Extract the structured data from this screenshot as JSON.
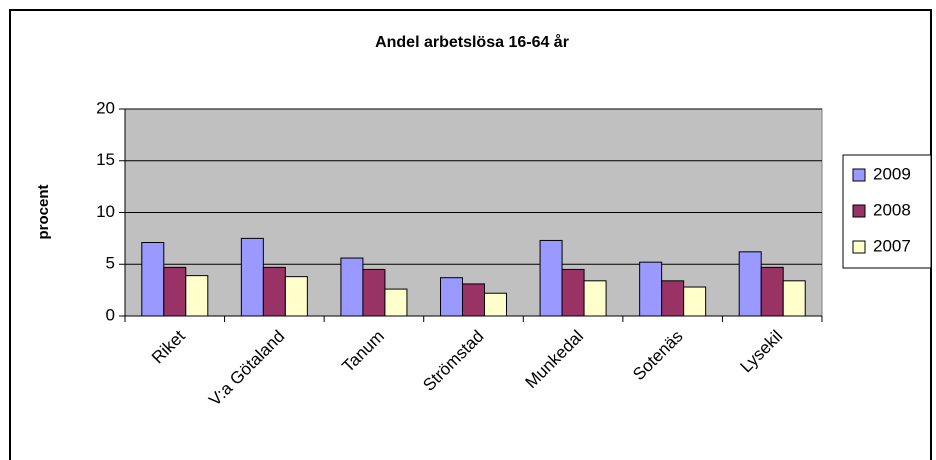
{
  "chart_data": {
    "type": "bar",
    "title": "Andel arbetslösa 16-64 år",
    "y_label": "procent",
    "categories": [
      "Riket",
      "V:a Götaland",
      "Tanum",
      "Strömstad",
      "Munkedal",
      "Sotenäs",
      "Lysekil"
    ],
    "series": [
      {
        "name": "2009",
        "color": "#9999ff",
        "values": [
          7.1,
          7.5,
          5.6,
          3.7,
          7.3,
          5.2,
          6.2
        ]
      },
      {
        "name": "2008",
        "color": "#993366",
        "values": [
          4.7,
          4.7,
          4.5,
          3.1,
          4.5,
          3.4,
          4.7
        ]
      },
      {
        "name": "2007",
        "color": "#ffffcc",
        "values": [
          3.9,
          3.8,
          2.6,
          2.2,
          3.4,
          2.8,
          3.4
        ]
      }
    ],
    "ylim": [
      0,
      20
    ],
    "yticks": [
      0,
      5,
      10,
      15,
      20
    ],
    "grid": true,
    "legend": "right"
  }
}
